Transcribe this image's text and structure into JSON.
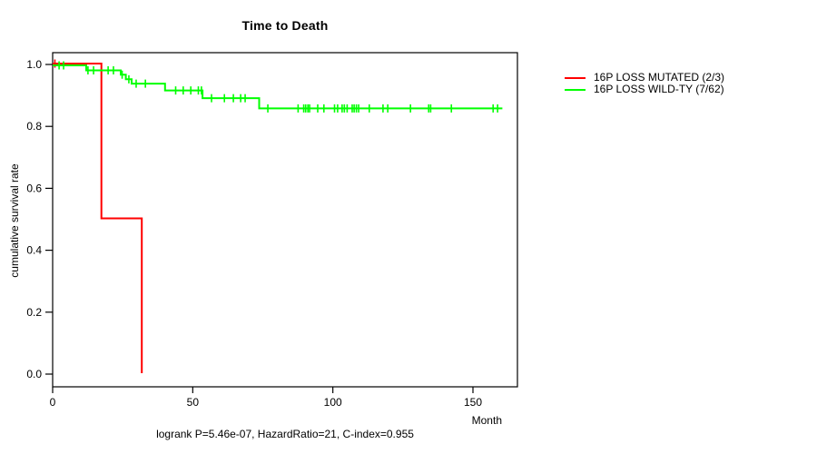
{
  "chart_data": {
    "type": "line",
    "subtype": "kaplan_meier_step",
    "title": "Time to Death",
    "xlabel": "Month",
    "ylabel": "cumulative survival rate",
    "footnote": "logrank P=5.46e-07, HazardRatio=21, C-index=0.955",
    "xlim": [
      0,
      166
    ],
    "ylim": [
      0.0,
      1.0
    ],
    "xticks": [
      0,
      50,
      100,
      150
    ],
    "xtick_labels": [
      "0",
      "50",
      "100",
      "150"
    ],
    "yticks": [
      0.0,
      0.2,
      0.4,
      0.6,
      0.8,
      1.0
    ],
    "ytick_labels": [
      "0.0",
      "0.2",
      "0.4",
      "0.6",
      "0.8",
      "1.0"
    ],
    "grid": false,
    "frame": true,
    "legend_position": "outside-top-right",
    "axis_color": "#000000",
    "series": [
      {
        "name": "16P LOSS MUTATED (2/3)",
        "color": "#FF0000",
        "n": 3,
        "events": 2,
        "steps": [
          [
            0,
            1.0
          ],
          [
            17.4,
            0.5
          ],
          [
            31.8,
            0.0
          ]
        ],
        "end_x": 31.8,
        "censors": [
          [
            0.8,
            1.0
          ]
        ]
      },
      {
        "name": "16P LOSS WILD-TY (7/62)",
        "color": "#00FF00",
        "n": 62,
        "events": 7,
        "steps": [
          [
            0,
            1.0
          ],
          [
            12.0,
            0.984
          ],
          [
            24.3,
            0.97
          ],
          [
            26.1,
            0.955
          ],
          [
            28.2,
            0.941
          ],
          [
            40.1,
            0.919
          ],
          [
            53.5,
            0.894
          ],
          [
            73.7,
            0.861
          ]
        ],
        "end_x": 160.5,
        "censors": [
          [
            2.3,
            1.0
          ],
          [
            3.9,
            1.0
          ],
          [
            12.6,
            0.984
          ],
          [
            14.6,
            0.984
          ],
          [
            19.8,
            0.984
          ],
          [
            21.7,
            0.984
          ],
          [
            24.8,
            0.97
          ],
          [
            27.2,
            0.955
          ],
          [
            29.8,
            0.941
          ],
          [
            33.1,
            0.941
          ],
          [
            43.9,
            0.919
          ],
          [
            46.6,
            0.919
          ],
          [
            49.3,
            0.919
          ],
          [
            52.0,
            0.919
          ],
          [
            53.1,
            0.919
          ],
          [
            56.7,
            0.894
          ],
          [
            61.3,
            0.894
          ],
          [
            64.5,
            0.894
          ],
          [
            67.1,
            0.894
          ],
          [
            68.7,
            0.894
          ],
          [
            76.8,
            0.861
          ],
          [
            87.6,
            0.861
          ],
          [
            89.6,
            0.861
          ],
          [
            90.3,
            0.861
          ],
          [
            91.1,
            0.861
          ],
          [
            91.7,
            0.861
          ],
          [
            94.6,
            0.861
          ],
          [
            96.8,
            0.861
          ],
          [
            100.6,
            0.861
          ],
          [
            101.7,
            0.861
          ],
          [
            103.3,
            0.861
          ],
          [
            104.1,
            0.861
          ],
          [
            105.1,
            0.861
          ],
          [
            106.9,
            0.861
          ],
          [
            107.6,
            0.861
          ],
          [
            108.4,
            0.861
          ],
          [
            109.2,
            0.861
          ],
          [
            113.0,
            0.861
          ],
          [
            117.9,
            0.861
          ],
          [
            119.6,
            0.861
          ],
          [
            127.7,
            0.861
          ],
          [
            134.2,
            0.861
          ],
          [
            134.9,
            0.861
          ],
          [
            142.3,
            0.861
          ],
          [
            157.2,
            0.861
          ],
          [
            158.8,
            0.861
          ]
        ]
      }
    ]
  }
}
